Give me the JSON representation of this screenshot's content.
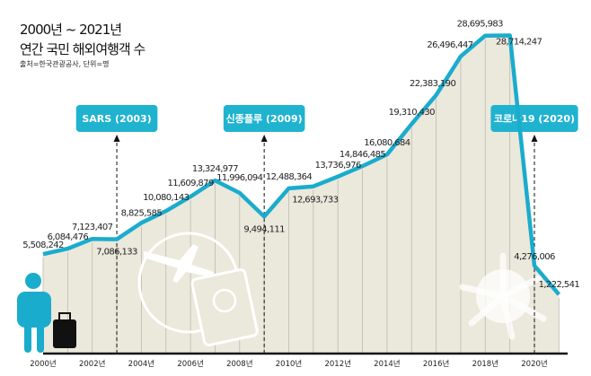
{
  "title_line1": "2000년 ~ 2021년",
  "title_line2": "연간 국민 해외여행객 수",
  "source": "출처=한국관광공사, 단위=명",
  "colors": {
    "line": "#1aaccc",
    "area": "#ebe8dc",
    "event_box": "#1fb3d0"
  },
  "chart_data": {
    "type": "area",
    "title": "연간 국민 해외여행객 수",
    "x": [
      2000,
      2001,
      2002,
      2003,
      2004,
      2005,
      2006,
      2007,
      2008,
      2009,
      2010,
      2011,
      2012,
      2013,
      2014,
      2015,
      2016,
      2017,
      2018,
      2019,
      2020,
      2021
    ],
    "values": [
      5508242,
      6084476,
      7123407,
      7086133,
      8825585,
      10080143,
      11609879,
      13324977,
      11996094,
      9494111,
      12488364,
      12693733,
      13736976,
      14846485,
      16080684,
      19310430,
      22383190,
      26496447,
      28695983,
      28714247,
      4276006,
      1222541
    ],
    "value_labels": [
      "5,508,242",
      "6,084,476",
      "7,123,407",
      "7,086,133",
      "8,825,585",
      "10,080,143",
      "11,609,879",
      "13,324,977",
      "11,996,094",
      "9,494,111",
      "12,488,364",
      "12,693,733",
      "13,736,976",
      "14,846,485",
      "16,080,684",
      "19,310,430",
      "22,383,190",
      "26,496,447",
      "28,695,983",
      "28,714,247",
      "4,276,006",
      "1,222,541"
    ],
    "tick_labels": [
      "2000년",
      "2002년",
      "2004년",
      "2006년",
      "2008년",
      "2010년",
      "2012년",
      "2014년",
      "2016년",
      "2018년",
      "2020년"
    ],
    "annotations": [
      {
        "label": "SARS (2003)",
        "year": 2003
      },
      {
        "label": "신종플루 (2009)",
        "year": 2009
      },
      {
        "label": "코로나19 (2020)",
        "year": 2020
      }
    ],
    "grid": true,
    "unit": "명"
  }
}
